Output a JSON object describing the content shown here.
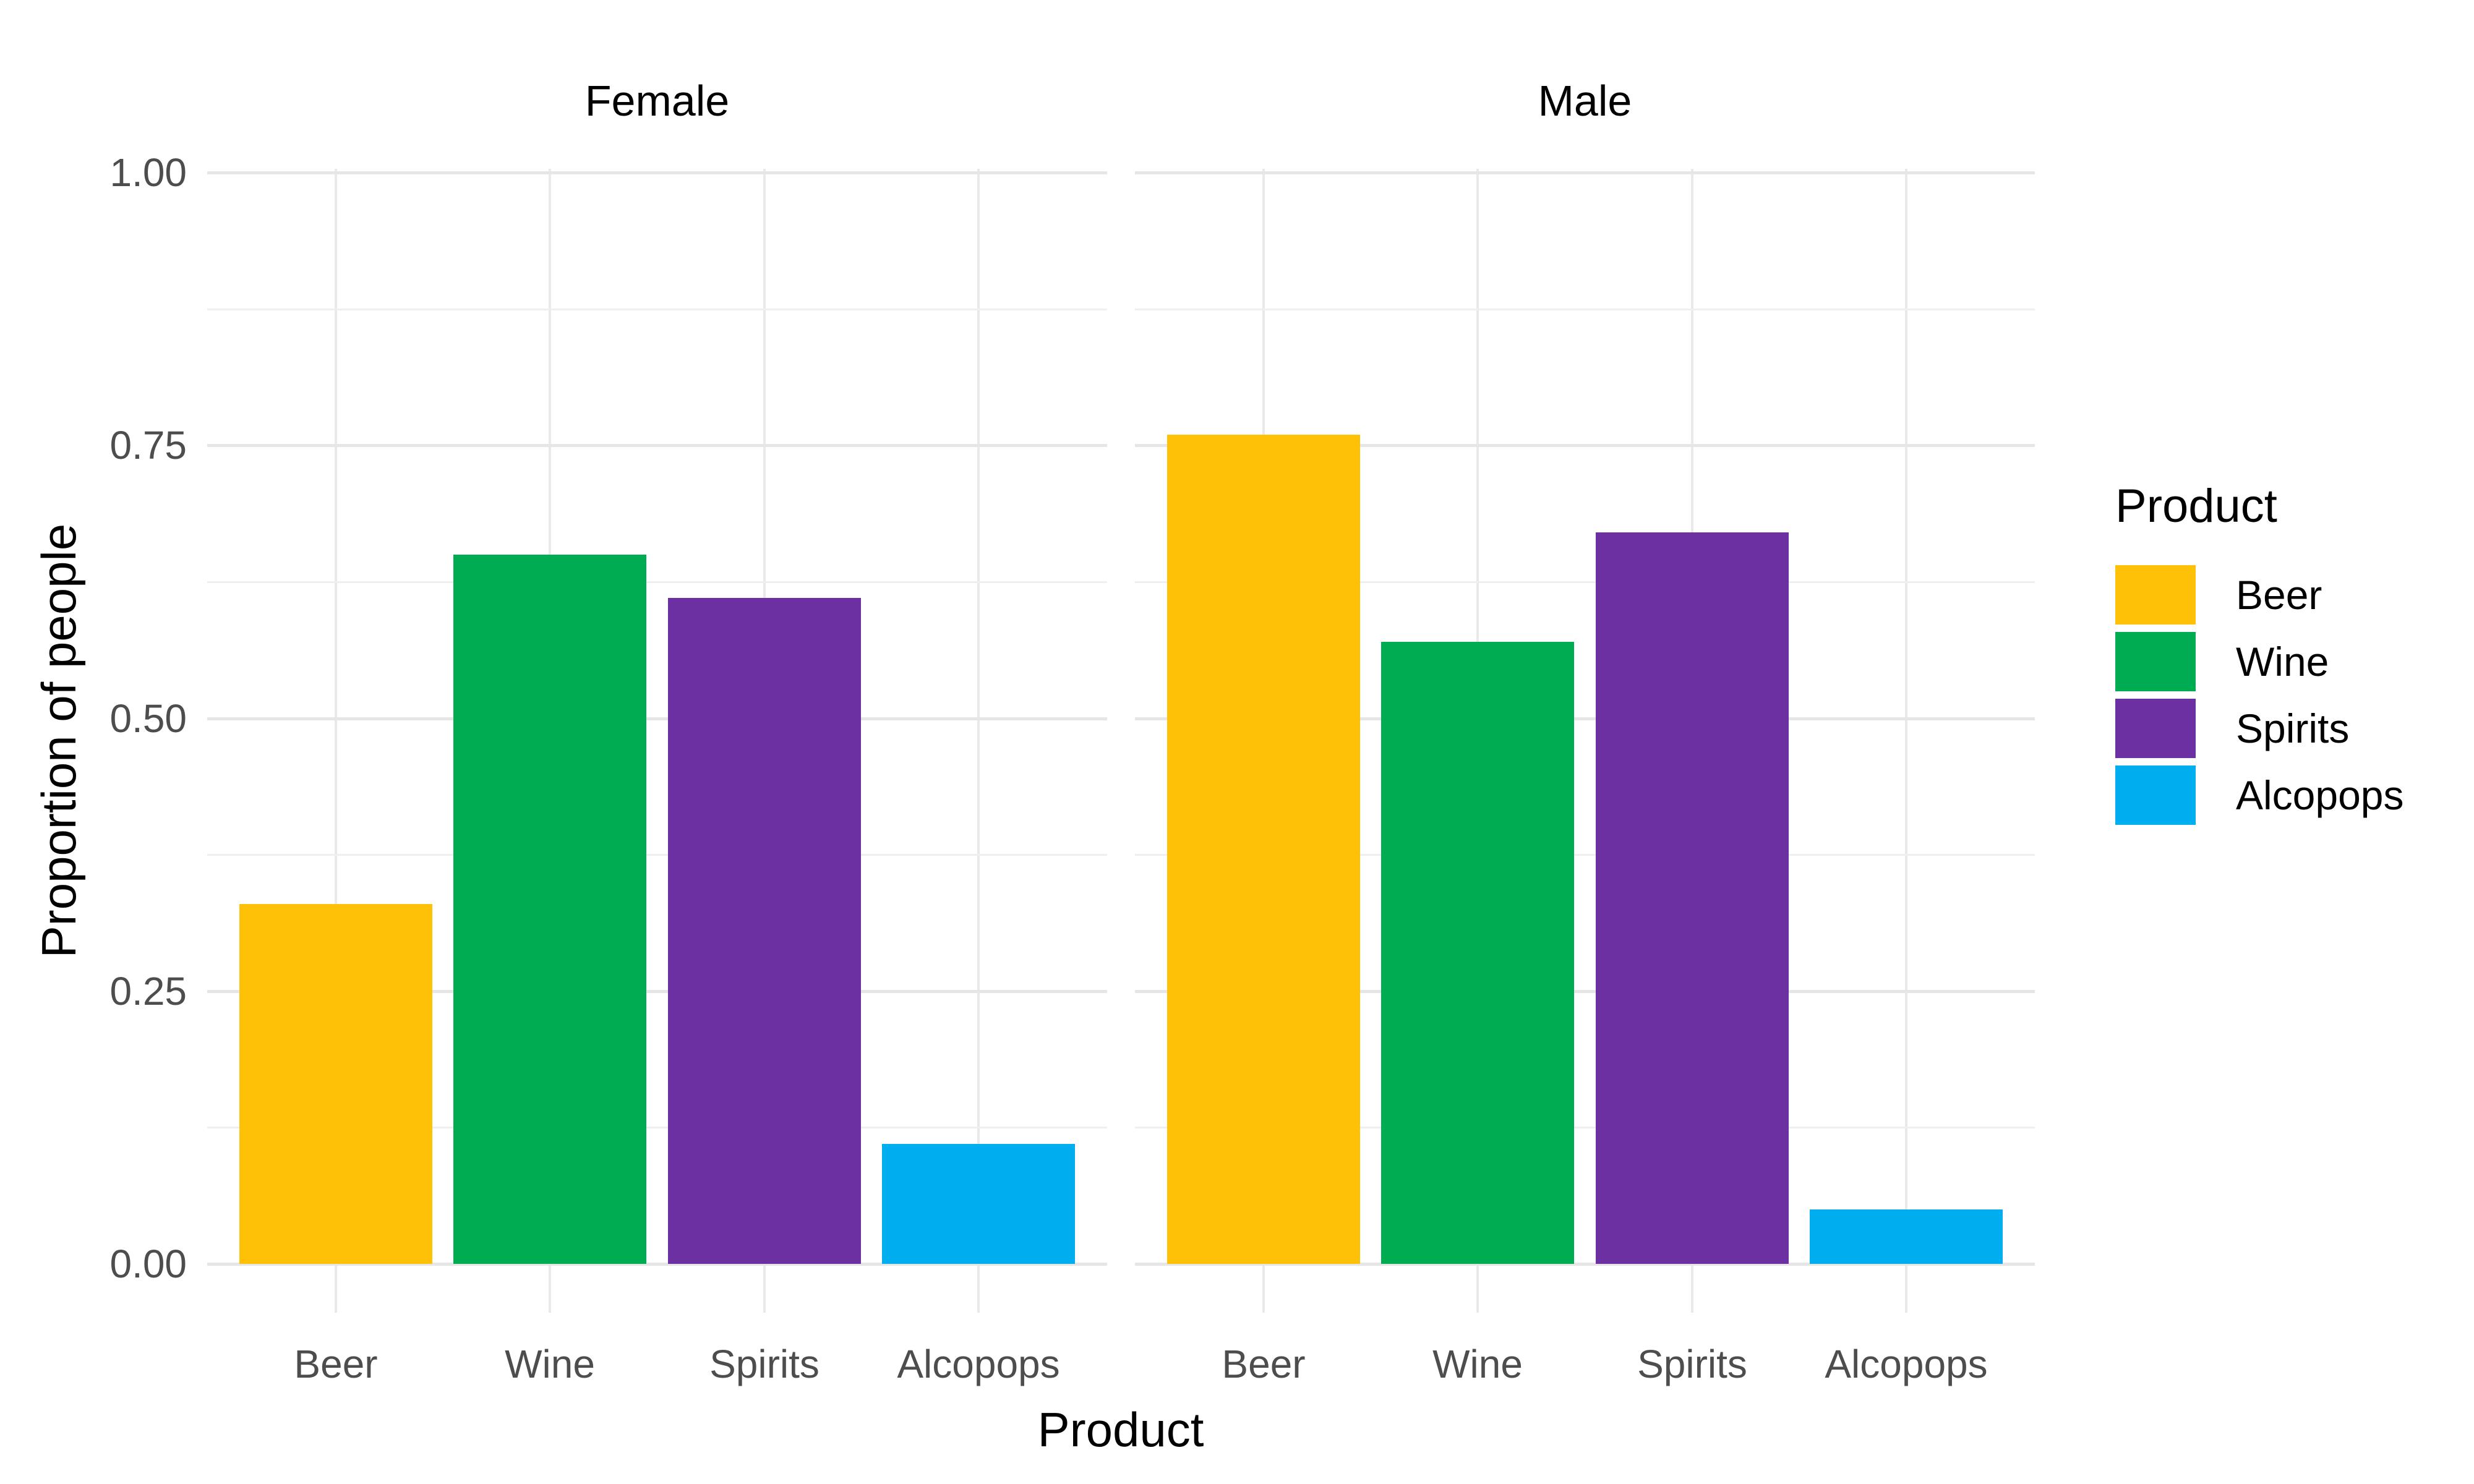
{
  "chart_data": {
    "type": "bar",
    "title": "",
    "xlabel": "Product",
    "ylabel": "Proportion of people",
    "categories": [
      "Beer",
      "Wine",
      "Spirits",
      "Alcopops"
    ],
    "facets": [
      {
        "label": "Female",
        "values": [
          0.33,
          0.65,
          0.61,
          0.11
        ]
      },
      {
        "label": "Male",
        "values": [
          0.76,
          0.57,
          0.67,
          0.05
        ]
      }
    ],
    "series_colors": {
      "Beer": "#FFC107",
      "Wine": "#00AC52",
      "Spirits": "#6D30A3",
      "Alcopops": "#00AEEF"
    },
    "y_ticks": [
      {
        "label": "1.00",
        "value": 1.0
      },
      {
        "label": "0.75",
        "value": 0.75
      },
      {
        "label": "0.50",
        "value": 0.5
      },
      {
        "label": "0.25",
        "value": 0.25
      },
      {
        "label": "0.00",
        "value": 0.0
      }
    ],
    "ylim": [
      0,
      1
    ],
    "grid": "major and minor horizontal lines, vertical lines at category centers",
    "legend": {
      "title": "Product",
      "position": "right",
      "entries": [
        {
          "label": "Beer",
          "color": "#FFC107"
        },
        {
          "label": "Wine",
          "color": "#00AC52"
        },
        {
          "label": "Spirits",
          "color": "#6D30A3"
        },
        {
          "label": "Alcopops",
          "color": "#00AEEF"
        }
      ]
    }
  }
}
